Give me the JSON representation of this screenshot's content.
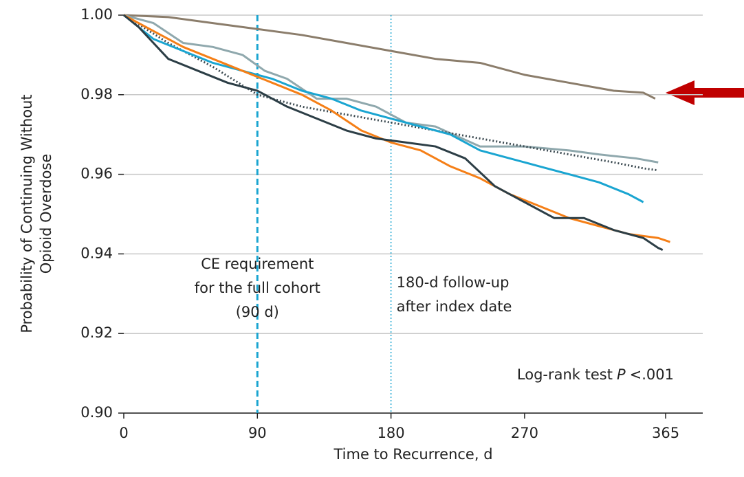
{
  "chart_data": {
    "type": "line",
    "y_label": [
      "Probability of Continuing Without",
      "Opioid Overdose"
    ],
    "x_label": "Time to Recurrence, d",
    "xlim": [
      0,
      390
    ],
    "ylim": [
      0.9,
      1.0
    ],
    "xticks": [
      0,
      90,
      180,
      270,
      365
    ],
    "yticks": [
      {
        "value": 0.9,
        "label": "0.90"
      },
      {
        "value": 0.92,
        "label": "0.92"
      },
      {
        "value": 0.94,
        "label": "0.94"
      },
      {
        "value": 0.96,
        "label": "0.96"
      },
      {
        "value": 0.98,
        "label": "0.98"
      },
      {
        "value": 1.0,
        "label": "1.00"
      }
    ],
    "grid": true,
    "vlines": [
      {
        "x": 90,
        "color": "#1aa5d1",
        "style": "dashed",
        "label": [
          "CE requirement",
          "for the full cohort",
          "(90 d)"
        ]
      },
      {
        "x": 180,
        "color": "#1aa5d1",
        "style": "dotted",
        "label": [
          "180-d follow-up",
          "after index date"
        ]
      }
    ],
    "annotation": [
      "Log-rank test",
      "P",
      "<.001"
    ],
    "series": [
      {
        "color": "#8b7d6b",
        "style": "solid",
        "x": [
          0,
          30,
          60,
          90,
          120,
          150,
          180,
          210,
          240,
          270,
          300,
          330,
          350,
          358
        ],
        "values": [
          1.0,
          0.9995,
          0.998,
          0.9965,
          0.995,
          0.993,
          0.991,
          0.989,
          0.988,
          0.985,
          0.983,
          0.981,
          0.9805,
          0.979
        ]
      },
      {
        "color": "#8fa8ad",
        "style": "solid",
        "x": [
          0,
          20,
          40,
          60,
          80,
          95,
          110,
          130,
          150,
          170,
          190,
          210,
          240,
          270,
          300,
          320,
          345,
          360
        ],
        "values": [
          1.0,
          0.998,
          0.993,
          0.992,
          0.99,
          0.986,
          0.984,
          0.979,
          0.979,
          0.977,
          0.973,
          0.972,
          0.967,
          0.967,
          0.966,
          0.965,
          0.964,
          0.963
        ]
      },
      {
        "color": "#3d4b52",
        "style": "dotted",
        "x": [
          0,
          30,
          60,
          90,
          120,
          150,
          180,
          210,
          240,
          270,
          300,
          330,
          350,
          360
        ],
        "values": [
          1.0,
          0.993,
          0.987,
          0.98,
          0.977,
          0.975,
          0.973,
          0.971,
          0.969,
          0.967,
          0.965,
          0.963,
          0.9615,
          0.961
        ]
      },
      {
        "color": "#1aa5d1",
        "style": "solid",
        "x": [
          0,
          20,
          40,
          60,
          80,
          100,
          120,
          140,
          160,
          180,
          200,
          220,
          240,
          260,
          280,
          300,
          320,
          340,
          350
        ],
        "values": [
          1.0,
          0.994,
          0.991,
          0.988,
          0.986,
          0.984,
          0.981,
          0.979,
          0.976,
          0.974,
          0.972,
          0.97,
          0.966,
          0.964,
          0.962,
          0.96,
          0.958,
          0.955,
          0.953
        ]
      },
      {
        "color": "#f57f17",
        "style": "solid",
        "x": [
          0,
          20,
          40,
          60,
          80,
          100,
          120,
          140,
          160,
          180,
          200,
          220,
          240,
          260,
          280,
          300,
          320,
          340,
          360,
          368
        ],
        "values": [
          1.0,
          0.996,
          0.992,
          0.989,
          0.986,
          0.983,
          0.98,
          0.976,
          0.971,
          0.968,
          0.966,
          0.962,
          0.959,
          0.955,
          0.952,
          0.949,
          0.947,
          0.945,
          0.944,
          0.943
        ]
      },
      {
        "color": "#2c3e46",
        "style": "solid",
        "x": [
          0,
          10,
          30,
          50,
          70,
          90,
          110,
          130,
          150,
          170,
          190,
          210,
          230,
          250,
          270,
          290,
          310,
          330,
          350,
          360,
          363
        ],
        "values": [
          1.0,
          0.997,
          0.989,
          0.986,
          0.983,
          0.981,
          0.977,
          0.974,
          0.971,
          0.969,
          0.968,
          0.967,
          0.964,
          0.957,
          0.953,
          0.949,
          0.949,
          0.946,
          0.944,
          0.9415,
          0.941
        ]
      }
    ]
  }
}
